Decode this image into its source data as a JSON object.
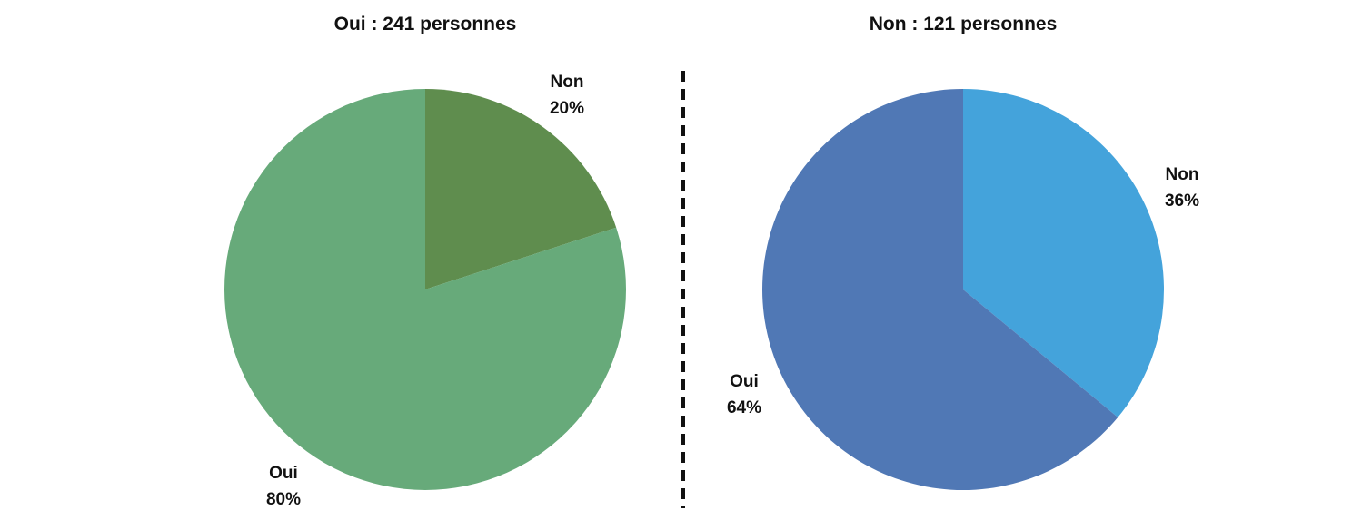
{
  "chart_data": [
    {
      "type": "pie",
      "title": "Oui : 241 personnes",
      "slices": [
        {
          "category": "Non",
          "value": 20,
          "label": "20%",
          "color": "#5f8d4e"
        },
        {
          "category": "Oui",
          "value": 80,
          "label": "80%",
          "color": "#67aa7a"
        }
      ],
      "start_angle_deg": 0,
      "direction": "clockwise"
    },
    {
      "type": "pie",
      "title": "Non : 121 personnes",
      "slices": [
        {
          "category": "Non",
          "value": 36,
          "label": "36%",
          "color": "#44a3db"
        },
        {
          "category": "Oui",
          "value": 64,
          "label": "64%",
          "color": "#5078b5"
        }
      ],
      "start_angle_deg": 0,
      "direction": "clockwise"
    }
  ],
  "separator": {
    "style": "dashed",
    "color": "#111111"
  }
}
